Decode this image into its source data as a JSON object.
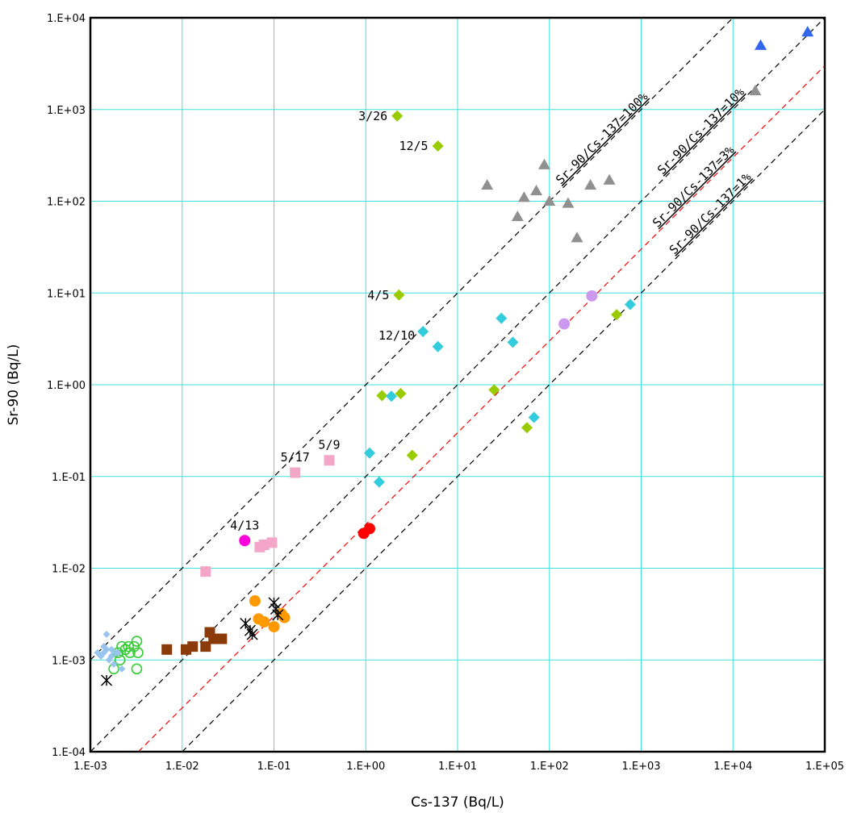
{
  "chart_data": {
    "type": "scatter",
    "xlabel": "Cs-137 (Bq/L)",
    "ylabel": "Sr-90 (Bq/L)",
    "x_scale": "log",
    "y_scale": "log",
    "xlim": [
      0.001,
      100000
    ],
    "ylim": [
      0.0001,
      10000
    ],
    "grid": true,
    "grid_color": "#40e0e0",
    "x_ticks": [
      "1.E-03",
      "1.E-02",
      "1.E-01",
      "1.E+00",
      "1.E+01",
      "1.E+02",
      "1.E+03",
      "1.E+04",
      "1.E+05"
    ],
    "y_ticks": [
      "1.E-04",
      "1.E-03",
      "1.E-02",
      "1.E-01",
      "1.E+00",
      "1.E+01",
      "1.E+02",
      "1.E+03",
      "1.E+04"
    ],
    "ratio_lines": [
      {
        "label": "Sr-90/Cs-137=100%",
        "ratio": 1.0,
        "color": "#000000"
      },
      {
        "label": "Sr-90/Cs-137=10%",
        "ratio": 0.1,
        "color": "#000000"
      },
      {
        "label": "Sr-90/Cs-137=3%",
        "ratio": 0.03,
        "color": "#ff0000"
      },
      {
        "label": "Sr-90/Cs-137=1%",
        "ratio": 0.01,
        "color": "#000000"
      }
    ],
    "series": [
      {
        "marker": "triangle",
        "color": "#3366ee",
        "points": [
          [
            20000,
            5000
          ],
          [
            65000,
            7000
          ]
        ]
      },
      {
        "marker": "triangle",
        "color": "#909090",
        "points": [
          [
            17500,
            1600
          ],
          [
            21,
            150
          ],
          [
            45,
            68
          ],
          [
            53,
            110
          ],
          [
            72,
            130
          ],
          [
            88,
            250
          ],
          [
            100,
            100
          ],
          [
            160,
            95
          ],
          [
            200,
            40
          ],
          [
            280,
            150
          ],
          [
            450,
            170
          ]
        ]
      },
      {
        "marker": "diamond",
        "color": "#99cc00",
        "points": [
          [
            2.2,
            850
          ],
          [
            6.1,
            400
          ],
          [
            2.3,
            9.5
          ],
          [
            1.5,
            0.76
          ],
          [
            2.4,
            0.8
          ],
          [
            25,
            0.88
          ],
          [
            3.2,
            0.17
          ],
          [
            57,
            0.34
          ],
          [
            540,
            5.8
          ]
        ]
      },
      {
        "marker": "diamond",
        "color": "#33ccdd",
        "points": [
          [
            4.2,
            3.8
          ],
          [
            6.1,
            2.6
          ],
          [
            1.9,
            0.75
          ],
          [
            30,
            5.3
          ],
          [
            40,
            2.9
          ],
          [
            68,
            0.44
          ],
          [
            760,
            7.5
          ],
          [
            1.1,
            0.18
          ],
          [
            1.4,
            0.087
          ]
        ]
      },
      {
        "marker": "circle",
        "color": "#cc99ee",
        "points": [
          [
            145,
            4.6
          ],
          [
            290,
            9.3
          ]
        ]
      },
      {
        "marker": "square",
        "color": "#f4a6c8",
        "points": [
          [
            0.17,
            0.11
          ],
          [
            0.4,
            0.15
          ],
          [
            0.018,
            0.0092
          ],
          [
            0.07,
            0.017
          ],
          [
            0.078,
            0.018
          ],
          [
            0.095,
            0.019
          ]
        ]
      },
      {
        "marker": "circle",
        "color": "#ff00dd",
        "points": [
          [
            0.048,
            0.02
          ]
        ]
      },
      {
        "marker": "circle",
        "color": "#ff0000",
        "points": [
          [
            0.95,
            0.024
          ],
          [
            1.1,
            0.027
          ]
        ]
      },
      {
        "marker": "circle",
        "color": "#ff9900",
        "points": [
          [
            0.062,
            0.0044
          ],
          [
            0.068,
            0.0028
          ],
          [
            0.078,
            0.0026
          ],
          [
            0.1,
            0.0023
          ],
          [
            0.12,
            0.0032
          ],
          [
            0.13,
            0.0029
          ]
        ]
      },
      {
        "marker": "x-star",
        "color": "#000000",
        "points": [
          [
            0.0015,
            0.0006
          ],
          [
            0.049,
            0.0025
          ],
          [
            0.055,
            0.0021
          ],
          [
            0.058,
            0.0019
          ],
          [
            0.1,
            0.0042
          ],
          [
            0.105,
            0.0036
          ],
          [
            0.11,
            0.0031
          ]
        ]
      },
      {
        "marker": "square",
        "color": "#8b3a0a",
        "points": [
          [
            0.0068,
            0.0013
          ],
          [
            0.011,
            0.0013
          ],
          [
            0.013,
            0.0014
          ],
          [
            0.018,
            0.0014
          ],
          [
            0.02,
            0.002
          ],
          [
            0.022,
            0.0017
          ],
          [
            0.027,
            0.0017
          ]
        ]
      },
      {
        "marker": "circle-open",
        "color": "#33cc33",
        "points": [
          [
            0.0018,
            0.0008
          ],
          [
            0.002,
            0.0012
          ],
          [
            0.0022,
            0.0014
          ],
          [
            0.0024,
            0.0013
          ],
          [
            0.0026,
            0.0014
          ],
          [
            0.0027,
            0.0012
          ],
          [
            0.003,
            0.0014
          ],
          [
            0.0032,
            0.0016
          ],
          [
            0.0033,
            0.0012
          ],
          [
            0.0032,
            0.0008
          ],
          [
            0.0021,
            0.001
          ]
        ]
      },
      {
        "marker": "diamond-small",
        "color": "#99c4ee",
        "points": [
          [
            0.0012,
            0.0012
          ],
          [
            0.0013,
            0.0011
          ],
          [
            0.0014,
            0.0012
          ],
          [
            0.0015,
            0.0013
          ],
          [
            0.0015,
            0.0019
          ],
          [
            0.0016,
            0.001
          ],
          [
            0.0017,
            0.0011
          ],
          [
            0.0017,
            0.0013
          ],
          [
            0.0019,
            0.0012
          ],
          [
            0.002,
            0.0012
          ],
          [
            0.0022,
            0.0008
          ],
          [
            0.0014,
            0.0014
          ],
          [
            0.0018,
            0.0009
          ]
        ]
      }
    ],
    "annotations": [
      {
        "text": "3/26",
        "x": 2.2,
        "y": 850
      },
      {
        "text": "12/5",
        "x": 6.1,
        "y": 400
      },
      {
        "text": "4/5",
        "x": 2.3,
        "y": 9.5
      },
      {
        "text": "12/10",
        "x": 4.2,
        "y": 3.8
      },
      {
        "text": "5/9",
        "x": 0.4,
        "y": 0.15
      },
      {
        "text": "5/17",
        "x": 0.17,
        "y": 0.11
      },
      {
        "text": "4/13",
        "x": 0.048,
        "y": 0.02
      }
    ]
  }
}
